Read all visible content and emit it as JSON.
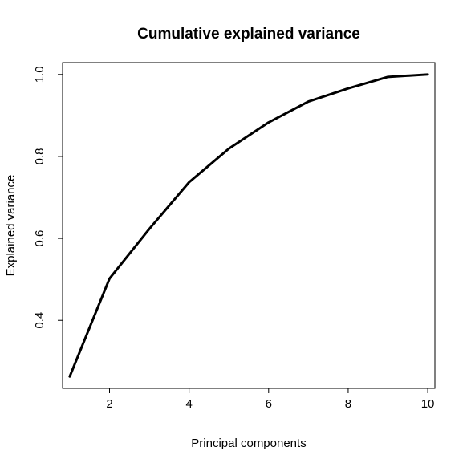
{
  "chart_data": {
    "type": "line",
    "title": "Cumulative explained variance",
    "xlabel": "Principal components",
    "ylabel": "Explained variance",
    "x": [
      1,
      2,
      3,
      4,
      5,
      6,
      7,
      8,
      9,
      10
    ],
    "series": [
      {
        "values": [
          0.263,
          0.502,
          0.623,
          0.737,
          0.819,
          0.883,
          0.934,
          0.966,
          0.994,
          1.0
        ],
        "color": "#000000"
      }
    ],
    "xlim": [
      0.82,
      10.18
    ],
    "ylim": [
      0.234,
      1.029
    ],
    "xticks": [
      2,
      4,
      6,
      8,
      10
    ],
    "xtick_labels": [
      "2",
      "4",
      "6",
      "8",
      "10"
    ],
    "yticks": [
      0.4,
      0.6,
      0.8,
      1.0
    ],
    "ytick_labels": [
      "0.4",
      "0.6",
      "0.8",
      "1.0"
    ],
    "grid": false,
    "legend": "none"
  }
}
